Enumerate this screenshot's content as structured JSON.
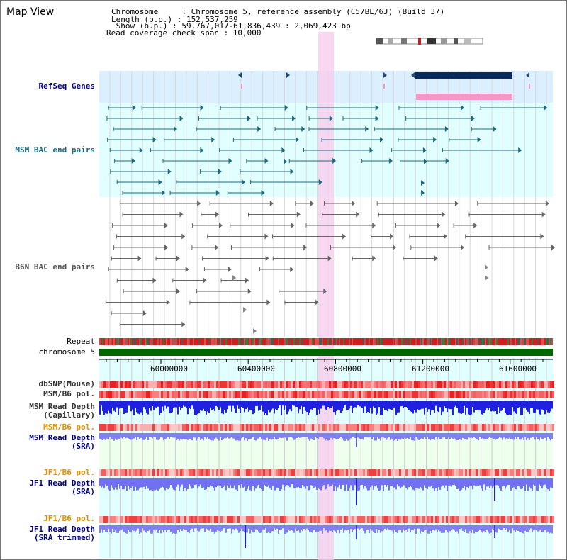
{
  "title": "Map View",
  "info": {
    "chromosome": "Chromosome     : Chromosome 5, reference assembly (C57BL/6J) (Build 37)",
    "length": "Length (b.p.) : 152,537,259",
    "show": " Show (b.p.) : 59,767,017-61,836,439 : 2,069,423 bp",
    "coverage": "Read coverage check span : 10,000"
  },
  "tracks": {
    "refseq": "RefSeq Genes",
    "msm_bac": "MSM BAC end pairs",
    "b6n_bac": "B6N BAC end pairs",
    "repeat": "Repeat",
    "chromosome": "chromosome 5",
    "dbsnp": "dbSNP(Mouse)",
    "msm_b6_pol": "MSM/B6 pol.",
    "msm_depth_cap_1": "MSM Read Depth",
    "msm_depth_cap_2": "(Capillary)",
    "msm_b6_pol2": "MSM/B6 pol.",
    "msm_depth_sra_1": "MSM Read Depth",
    "msm_depth_sra_2": "(SRA)",
    "jf1_b6_pol": "JF1/B6 pol.",
    "jf1_depth_sra_1": "JF1 Read Depth",
    "jf1_depth_sra_2": "(SRA)",
    "jf1_b6_pol2": "JF1/B6 pol.",
    "jf1_depth_trim_1": "JF1 Read Depth",
    "jf1_depth_trim_2": "(SRA trimmed)"
  },
  "axis": {
    "ticks": [
      "60000000",
      "60400000",
      "60800000",
      "61200000",
      "61600000"
    ]
  },
  "colors": {
    "navy": "#000080",
    "teal": "#1d6a7c",
    "highlight": "#f7d0ee",
    "refseq_bg": "#dcefff",
    "bac_bg": "#e2ffff",
    "chrom": "#006600",
    "depth_blue": "#2020e0",
    "depth_light": "#8080f0"
  }
}
